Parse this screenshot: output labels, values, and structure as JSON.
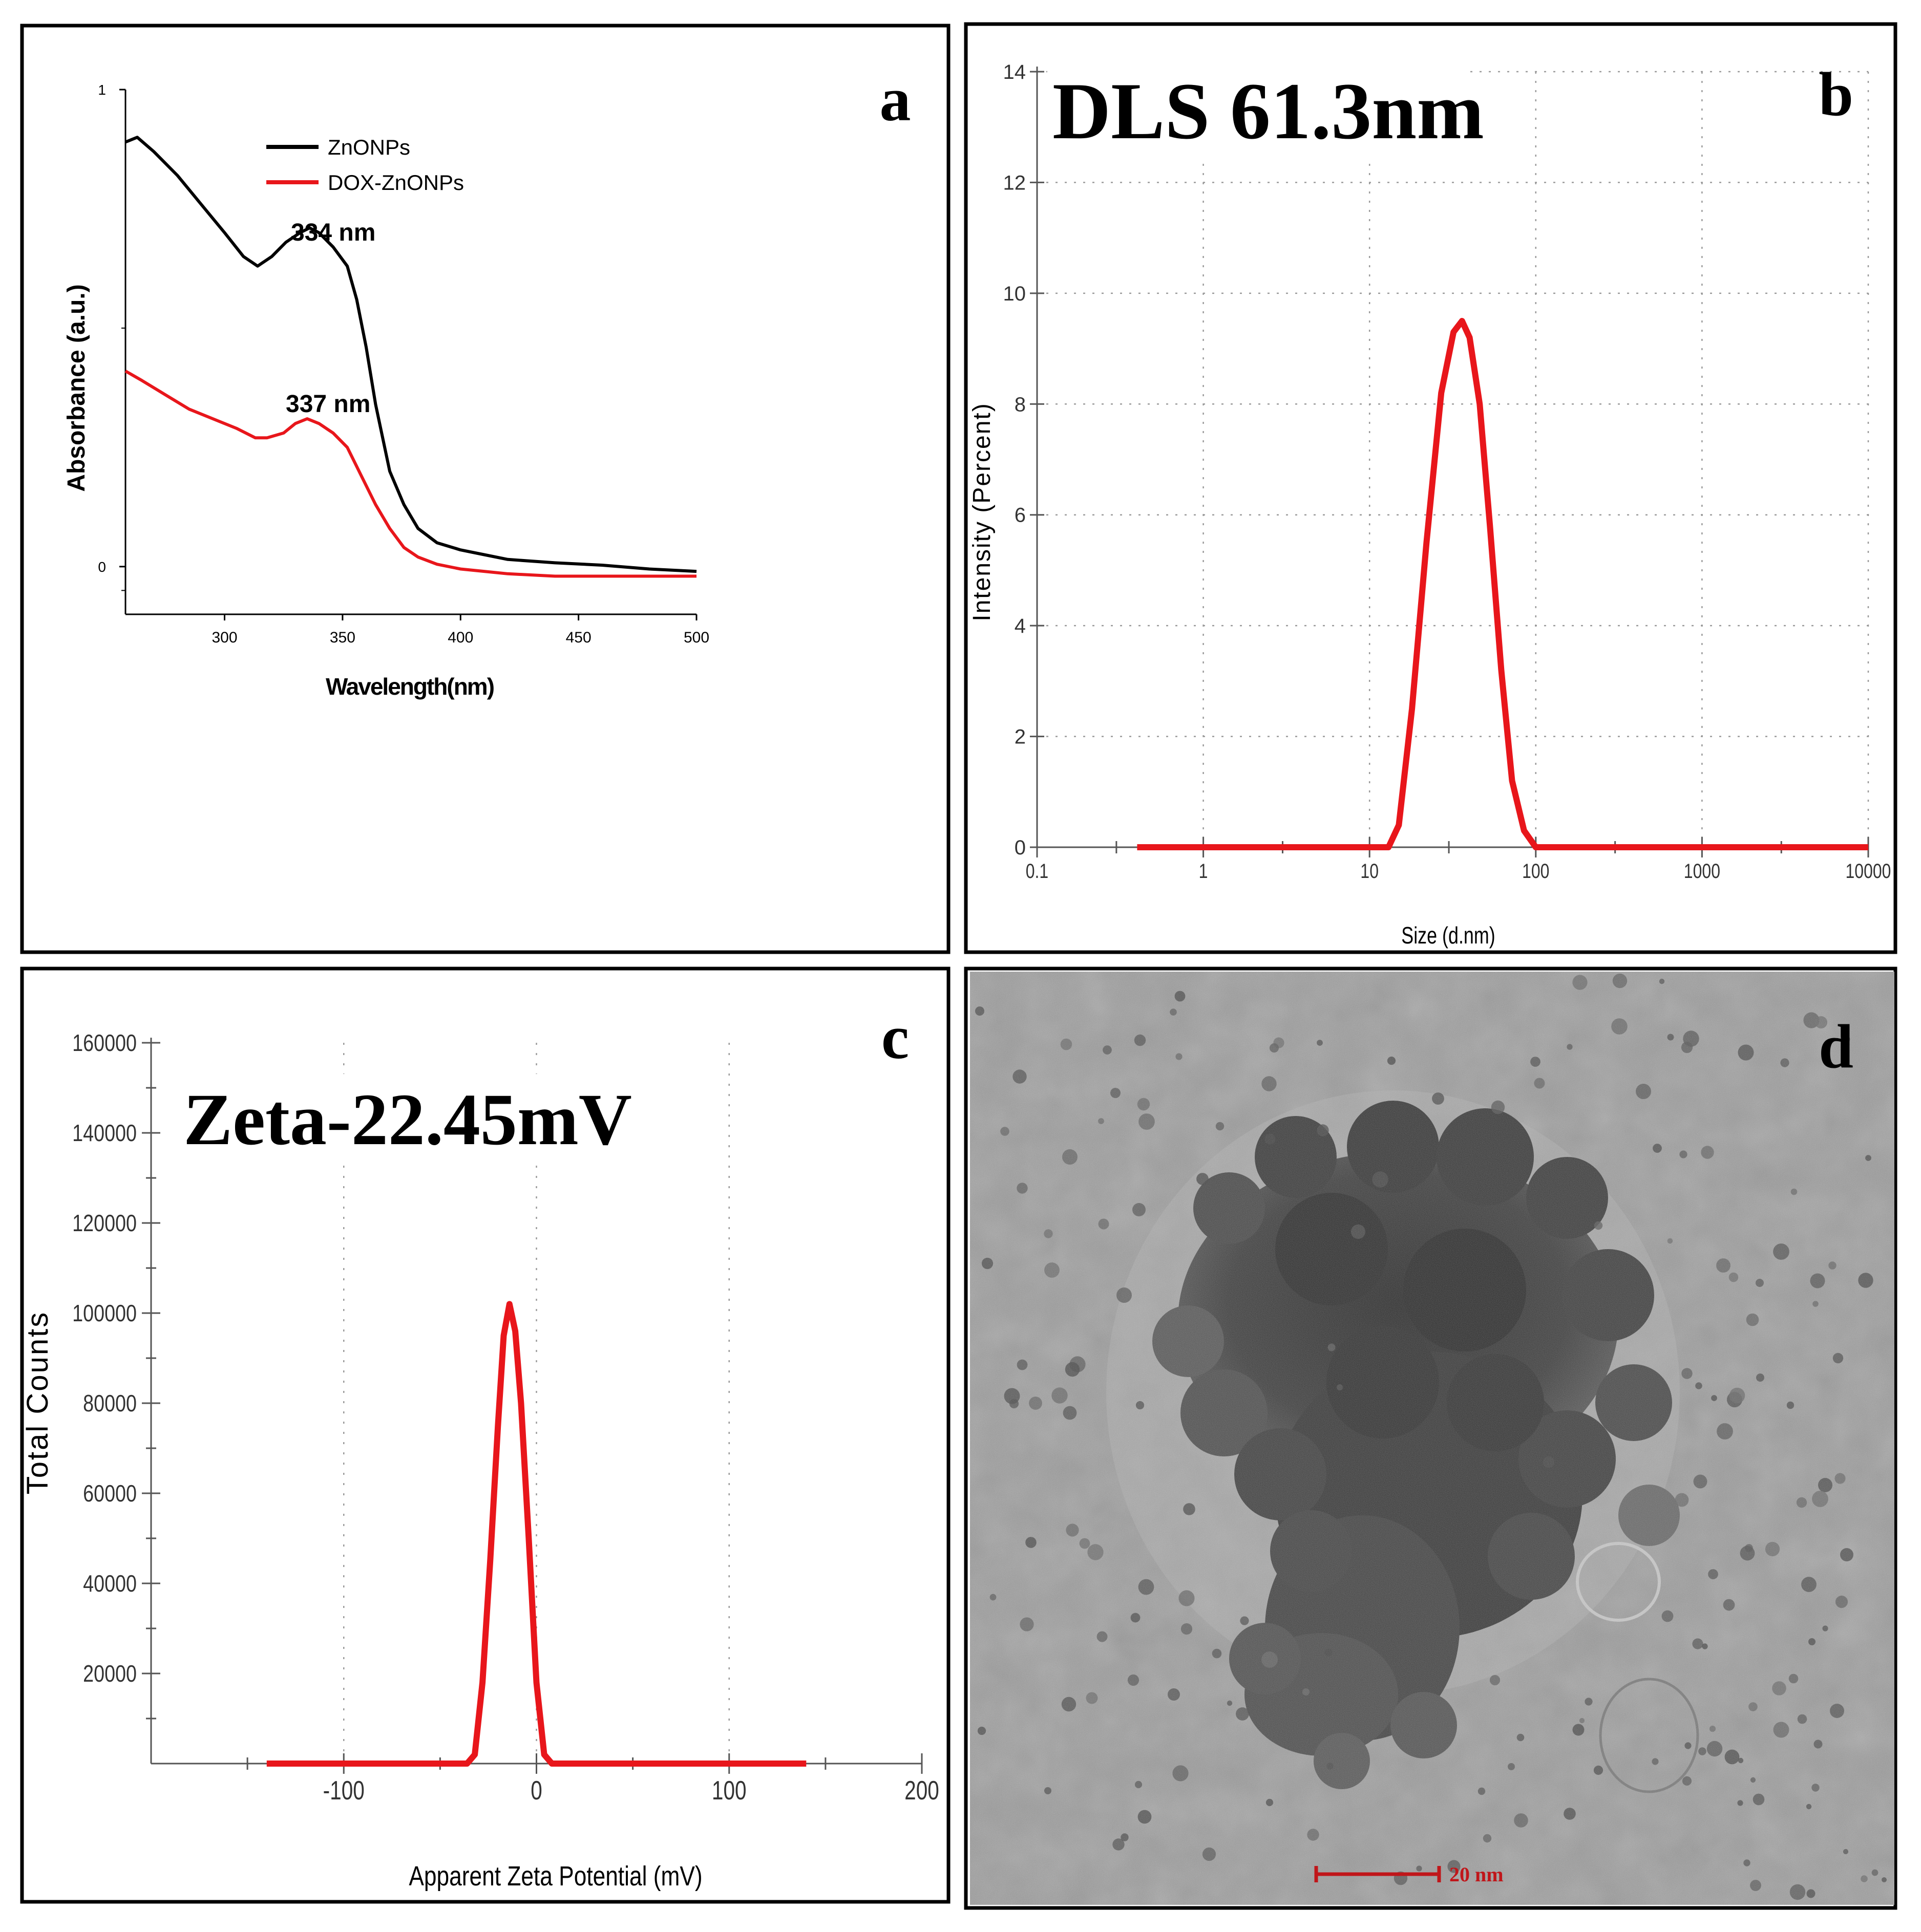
{
  "panels": {
    "a": {
      "letter": "a"
    },
    "b": {
      "letter": "b",
      "headline": "DLS 61.3nm"
    },
    "c": {
      "letter": "c",
      "headline": "Zeta-22.45mV"
    },
    "d": {
      "letter": "d",
      "scalebar_label": "20 nm"
    }
  },
  "colors": {
    "black_series": "#000000",
    "red_series": "#e8161b",
    "grid": "#9a9a9a",
    "axis": "#000000"
  },
  "chart_data": [
    {
      "panel": "a",
      "type": "line",
      "xlabel": "Wavelength(nm)",
      "ylabel": "Absorbance (a.u.)",
      "xlim": [
        258,
        500
      ],
      "ylim": [
        -0.1,
        1
      ],
      "x_ticks": [
        300,
        350,
        400,
        450,
        500
      ],
      "y_ticks": [
        0,
        1
      ],
      "annotations": [
        {
          "text": "334 nm",
          "x": 334,
          "y": 0.66
        },
        {
          "text": "337 nm",
          "x": 337,
          "y": 0.33
        }
      ],
      "legend_position": "top-left",
      "series": [
        {
          "name": "ZnONPs",
          "color": "#000000",
          "x": [
            258,
            263,
            270,
            280,
            290,
            300,
            308,
            314,
            320,
            326,
            332,
            336,
            340,
            346,
            352,
            356,
            360,
            364,
            370,
            376,
            382,
            390,
            400,
            410,
            420,
            440,
            460,
            480,
            500
          ],
          "y": [
            0.89,
            0.9,
            0.87,
            0.82,
            0.76,
            0.7,
            0.65,
            0.63,
            0.65,
            0.68,
            0.7,
            0.71,
            0.7,
            0.67,
            0.63,
            0.56,
            0.46,
            0.34,
            0.2,
            0.13,
            0.08,
            0.05,
            0.035,
            0.025,
            0.015,
            0.008,
            0.003,
            -0.005,
            -0.01
          ]
        },
        {
          "name": "DOX-ZnONPs",
          "color": "#e8161b",
          "x": [
            258,
            265,
            275,
            285,
            295,
            305,
            313,
            318,
            325,
            330,
            335,
            340,
            346,
            352,
            358,
            364,
            370,
            376,
            382,
            390,
            400,
            410,
            420,
            440,
            460,
            480,
            500
          ],
          "y": [
            0.41,
            0.39,
            0.36,
            0.33,
            0.31,
            0.29,
            0.27,
            0.27,
            0.28,
            0.3,
            0.31,
            0.3,
            0.28,
            0.25,
            0.19,
            0.13,
            0.08,
            0.04,
            0.02,
            0.005,
            -0.005,
            -0.01,
            -0.015,
            -0.02,
            -0.02,
            -0.02,
            -0.02
          ]
        }
      ]
    },
    {
      "panel": "b",
      "type": "line",
      "xscale": "log",
      "xlabel": "Size (d.nm)",
      "ylabel": "Intensity (Percent)",
      "xlim": [
        0.1,
        10000
      ],
      "ylim": [
        0,
        14
      ],
      "x_ticks": [
        "0.1",
        "1",
        "10",
        "100",
        "1000",
        "10000"
      ],
      "y_ticks": [
        "0",
        "2",
        "4",
        "6",
        "8",
        "10",
        "12",
        "14"
      ],
      "grid": true,
      "series": [
        {
          "color": "#e8161b",
          "x": [
            0.4,
            13,
            15,
            18,
            22,
            27,
            32,
            36,
            40,
            46,
            53,
            62,
            72,
            85,
            100,
            10000
          ],
          "y": [
            0,
            0,
            0.4,
            2.5,
            5.5,
            8.2,
            9.3,
            9.5,
            9.2,
            8.0,
            5.8,
            3.2,
            1.2,
            0.3,
            0,
            0
          ]
        }
      ]
    },
    {
      "panel": "c",
      "type": "line",
      "xlabel": "Apparent Zeta Potential (mV)",
      "ylabel": "Total Counts",
      "xlim": [
        -200,
        200
      ],
      "ylim": [
        0,
        160000
      ],
      "x_ticks": [
        "-100",
        "0",
        "100",
        "200"
      ],
      "y_ticks": [
        "20000",
        "40000",
        "60000",
        "80000",
        "100000",
        "120000",
        "140000",
        "160000"
      ],
      "grid": true,
      "series": [
        {
          "color": "#e8161b",
          "x": [
            -140,
            -36,
            -32,
            -28,
            -24,
            -20,
            -17,
            -14,
            -11,
            -8,
            -4,
            0,
            4,
            8,
            140
          ],
          "y": [
            0,
            0,
            2000,
            18000,
            45000,
            75000,
            95000,
            102000,
            96000,
            80000,
            50000,
            18000,
            2000,
            0,
            0
          ]
        }
      ]
    }
  ]
}
